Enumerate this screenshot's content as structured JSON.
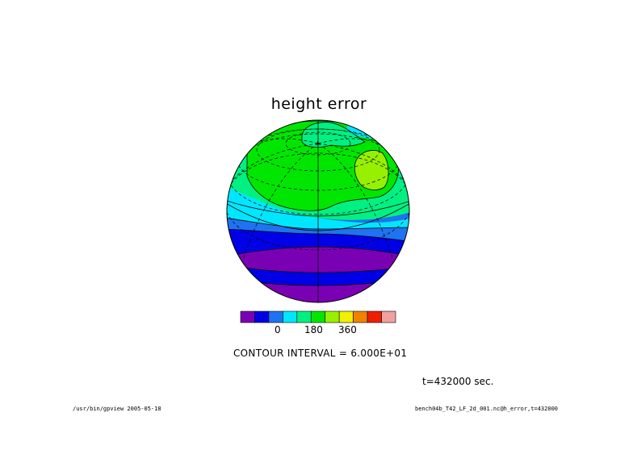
{
  "title": "height error",
  "colorbar": {
    "colors": [
      "#7a00b4",
      "#0000e6",
      "#1f73f0",
      "#00e6ff",
      "#00f082",
      "#00e600",
      "#96f000",
      "#f0f000",
      "#f08200",
      "#f01e00",
      "#f0a0a0"
    ],
    "tick_labels": [
      "0",
      "180",
      "360"
    ]
  },
  "contour_interval_text": "CONTOUR INTERVAL = 6.000E+01",
  "time_text": "t=432000 sec.",
  "footer_left": "/usr/bin/gpview  2005-05-18",
  "footer_right": "bench04b_T42_LF_2d_001.nc@h_error,t=432000",
  "globe": {
    "band_colors": [
      "#7a00b4",
      "#0000e6",
      "#1f73f0",
      "#00e6ff",
      "#00f082",
      "#00e600",
      "#96f000"
    ]
  }
}
